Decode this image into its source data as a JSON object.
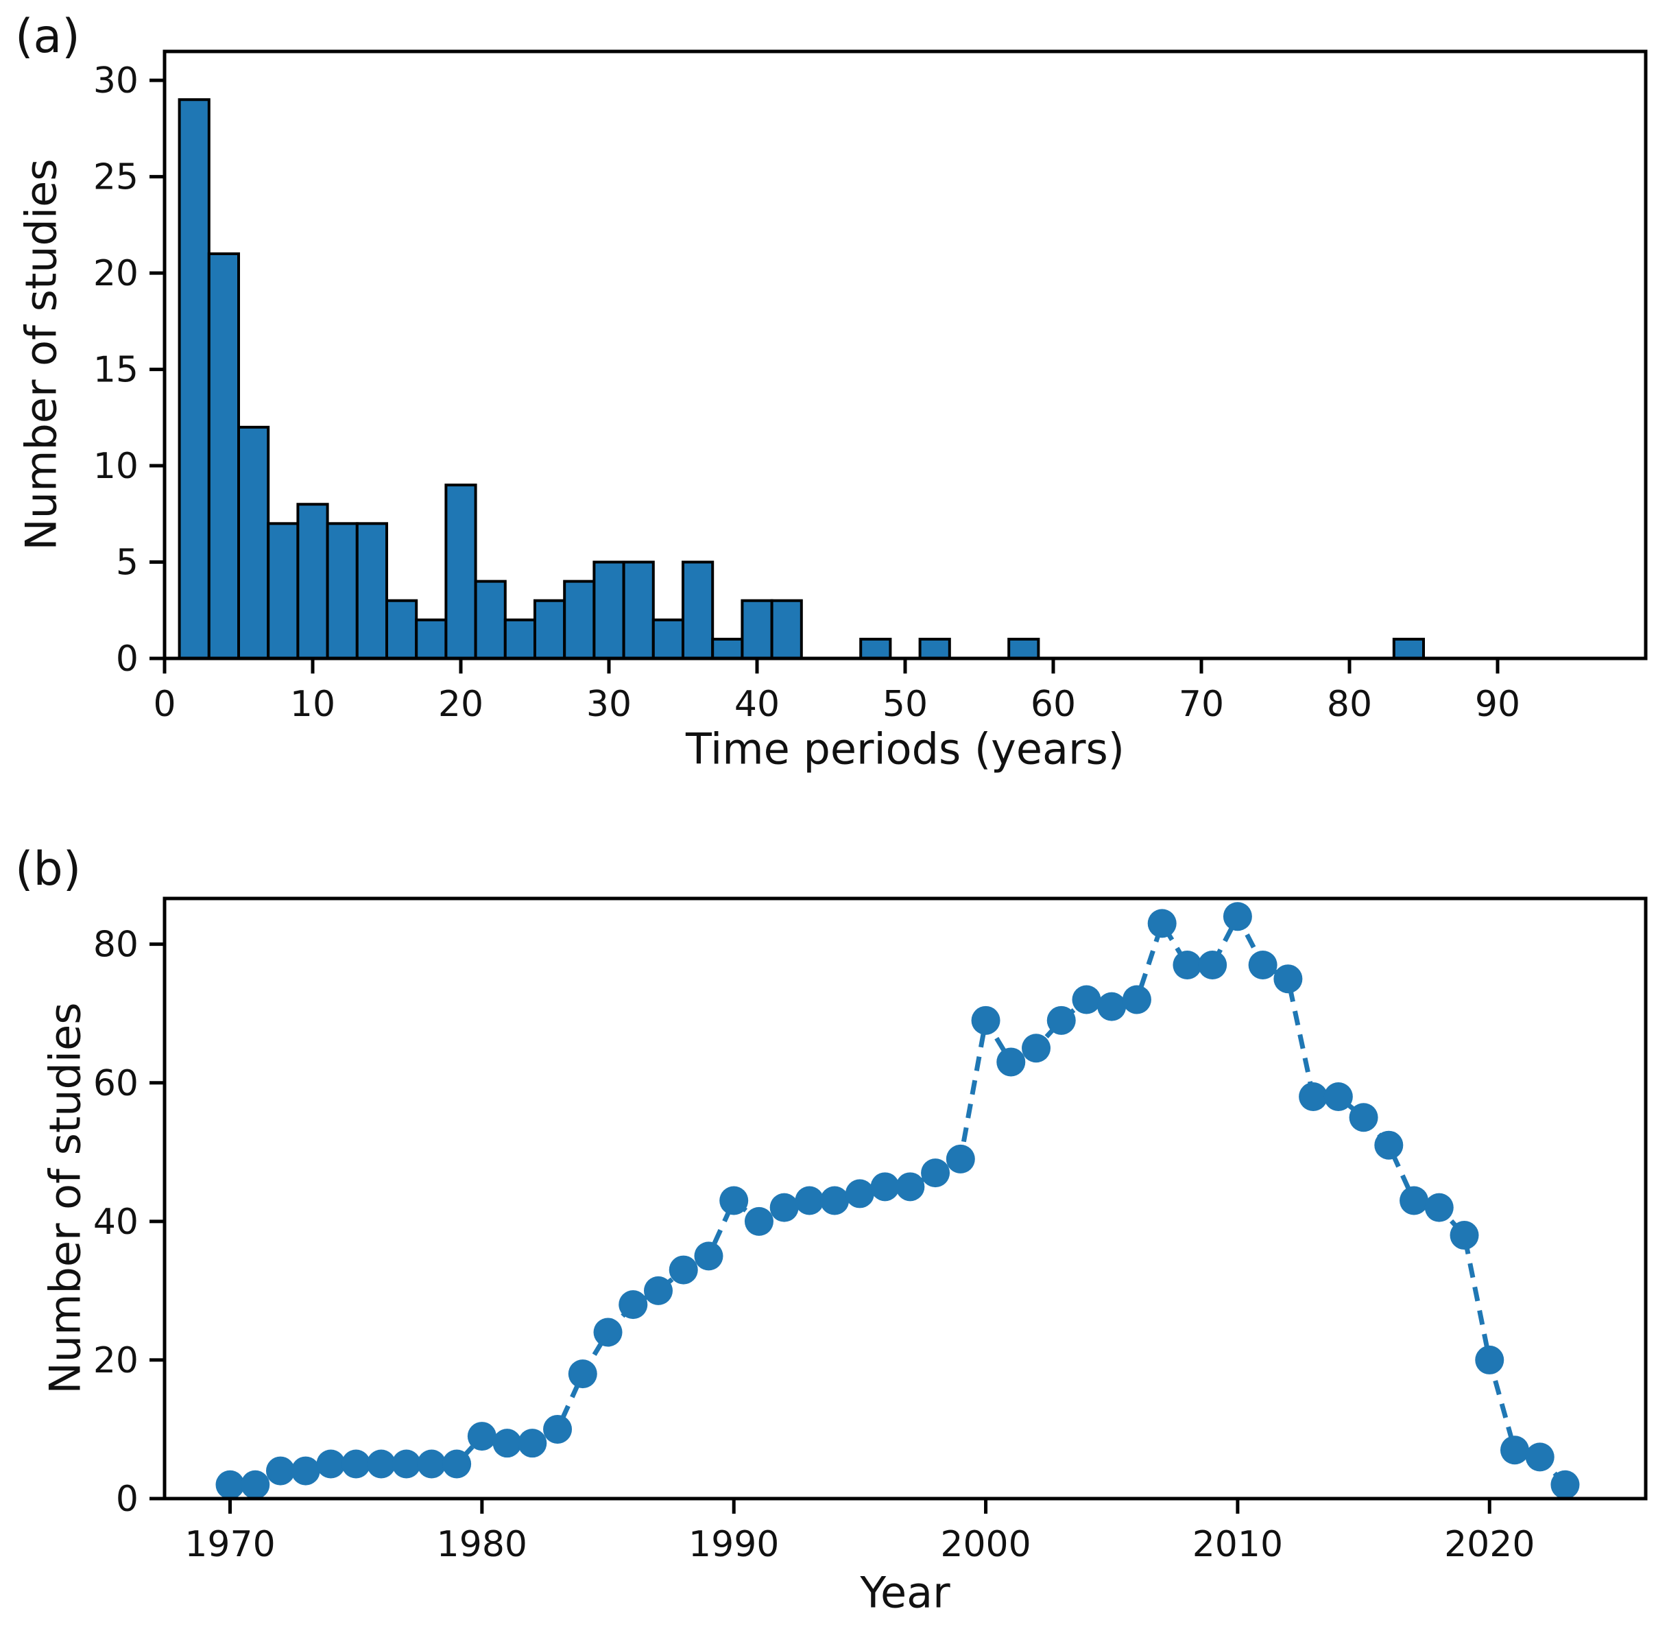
{
  "panels": {
    "a": {
      "tag": "(a)"
    },
    "b": {
      "tag": "(b)"
    }
  },
  "colors": {
    "series_blue": "#1f77b4",
    "bar_edge": "#000000",
    "axis": "#000000",
    "text": "#111111"
  },
  "chart_data": [
    {
      "type": "bar",
      "panel": "a",
      "title": "",
      "xlabel": "Time periods (years)",
      "ylabel": "Number of studies",
      "bin_width": 2,
      "xlim": [
        0,
        100
      ],
      "ylim": [
        0,
        31.5
      ],
      "x_ticks": [
        0,
        10,
        20,
        30,
        40,
        50,
        60,
        70,
        80,
        90
      ],
      "y_ticks": [
        0,
        5,
        10,
        15,
        20,
        25,
        30
      ],
      "grid": false,
      "legend": null,
      "bins": [
        {
          "start": 1,
          "count": 29
        },
        {
          "start": 3,
          "count": 21
        },
        {
          "start": 5,
          "count": 12
        },
        {
          "start": 7,
          "count": 7
        },
        {
          "start": 9,
          "count": 8
        },
        {
          "start": 11,
          "count": 7
        },
        {
          "start": 13,
          "count": 7
        },
        {
          "start": 15,
          "count": 3
        },
        {
          "start": 17,
          "count": 2
        },
        {
          "start": 19,
          "count": 9
        },
        {
          "start": 21,
          "count": 4
        },
        {
          "start": 23,
          "count": 2
        },
        {
          "start": 25,
          "count": 3
        },
        {
          "start": 27,
          "count": 4
        },
        {
          "start": 29,
          "count": 5
        },
        {
          "start": 31,
          "count": 5
        },
        {
          "start": 33,
          "count": 2
        },
        {
          "start": 35,
          "count": 5
        },
        {
          "start": 37,
          "count": 1
        },
        {
          "start": 39,
          "count": 3
        },
        {
          "start": 41,
          "count": 3
        },
        {
          "start": 47,
          "count": 1
        },
        {
          "start": 51,
          "count": 1
        },
        {
          "start": 57,
          "count": 1
        },
        {
          "start": 83,
          "count": 1
        }
      ]
    },
    {
      "type": "line",
      "panel": "b",
      "title": "",
      "xlabel": "Year",
      "ylabel": "Number of studies",
      "xlim": [
        1967.4,
        2026.2
      ],
      "ylim": [
        0,
        86.6
      ],
      "x_ticks": [
        1970,
        1980,
        1990,
        2000,
        2010,
        2020
      ],
      "y_ticks": [
        0,
        20,
        40,
        60,
        80
      ],
      "grid": false,
      "legend": null,
      "line_style": "dashed",
      "marker": "circle",
      "x": [
        1970,
        1971,
        1972,
        1973,
        1974,
        1975,
        1976,
        1977,
        1978,
        1979,
        1980,
        1981,
        1982,
        1983,
        1984,
        1985,
        1986,
        1987,
        1988,
        1989,
        1990,
        1991,
        1992,
        1993,
        1994,
        1995,
        1996,
        1997,
        1998,
        1999,
        2000,
        2001,
        2002,
        2003,
        2004,
        2005,
        2006,
        2007,
        2008,
        2009,
        2010,
        2011,
        2012,
        2013,
        2014,
        2015,
        2016,
        2017,
        2018,
        2019,
        2020,
        2021,
        2022,
        2023
      ],
      "y": [
        2,
        2,
        4,
        4,
        5,
        5,
        5,
        5,
        5,
        5,
        9,
        8,
        8,
        10,
        18,
        24,
        28,
        30,
        33,
        35,
        43,
        40,
        42,
        43,
        43,
        44,
        45,
        45,
        47,
        49,
        69,
        63,
        65,
        69,
        72,
        71,
        72,
        83,
        77,
        77,
        84,
        77,
        75,
        58,
        58,
        55,
        51,
        43,
        42,
        38,
        20,
        7,
        6,
        2
      ]
    }
  ]
}
